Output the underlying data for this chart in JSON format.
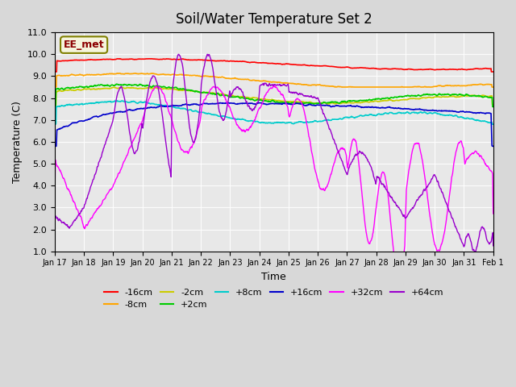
{
  "title": "Soil/Water Temperature Set 2",
  "xlabel": "Time",
  "ylabel": "Temperature (C)",
  "ylim": [
    1.0,
    11.0
  ],
  "yticks": [
    1.0,
    2.0,
    3.0,
    4.0,
    5.0,
    6.0,
    7.0,
    8.0,
    9.0,
    10.0,
    11.0
  ],
  "xtick_labels": [
    "Jan 17",
    "Jan 18",
    "Jan 19",
    "Jan 20",
    "Jan 21",
    "Jan 22",
    "Jan 23",
    "Jan 24",
    "Jan 25",
    "Jan 26",
    "Jan 27",
    "Jan 28",
    "Jan 29",
    "Jan 30",
    "Jan 31",
    "Feb 1"
  ],
  "n_days": 15,
  "bg_color": "#e8e8e8",
  "annotation_text": "EE_met",
  "annotation_color": "#8b0000",
  "annotation_bg": "#f5f5dc",
  "series_colors": {
    "-16cm": "#ff0000",
    "-8cm": "#ffa500",
    "-2cm": "#cccc00",
    "+2cm": "#00cc00",
    "+8cm": "#00cccc",
    "+16cm": "#0000cc",
    "+32cm": "#ff00ff",
    "+64cm": "#9900cc"
  },
  "legend_labels": [
    "-16cm",
    "-8cm",
    "-2cm",
    "+2cm",
    "+8cm",
    "+16cm",
    "+32cm",
    "+64cm"
  ]
}
